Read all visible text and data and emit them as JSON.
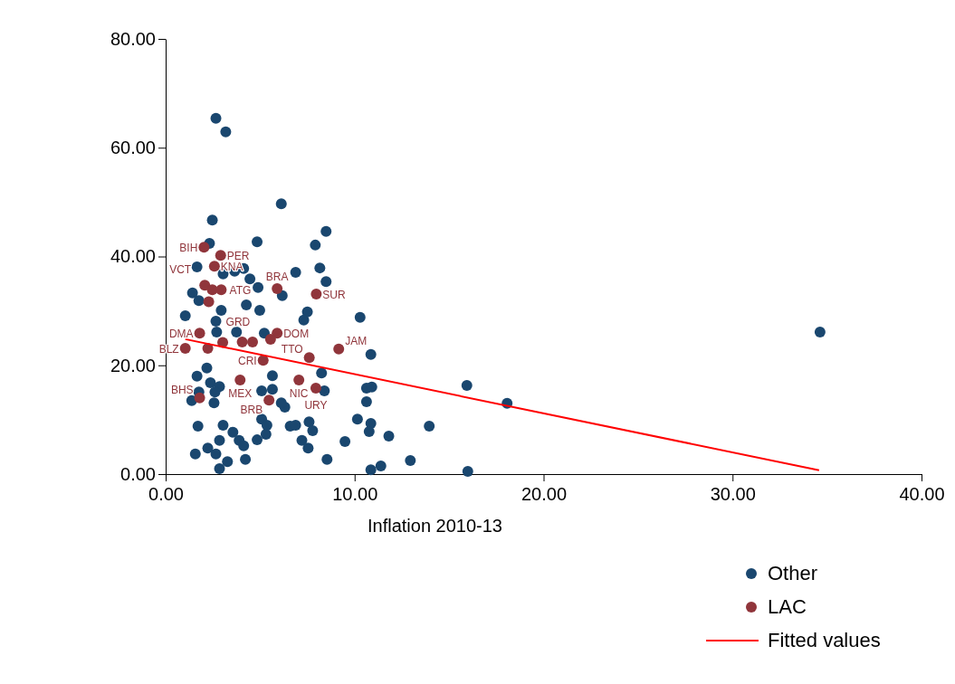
{
  "chart_data": {
    "type": "scatter",
    "xlabel": "Inflation 2010-13",
    "xlim": [
      0,
      40
    ],
    "ylim": [
      0,
      80
    ],
    "xticks": [
      {
        "value": 0,
        "label": "0.00"
      },
      {
        "value": 10,
        "label": "10.00"
      },
      {
        "value": 20,
        "label": "20.00"
      },
      {
        "value": 30,
        "label": "30.00"
      },
      {
        "value": 40,
        "label": "40.00"
      }
    ],
    "yticks": [
      {
        "value": 0,
        "label": "0.00"
      },
      {
        "value": 20,
        "label": "20.00"
      },
      {
        "value": 40,
        "label": "40.00"
      },
      {
        "value": 60,
        "label": "60.00"
      },
      {
        "value": 80,
        "label": "80.00"
      }
    ],
    "grid": false,
    "legend": "bottom right",
    "marker": "circle",
    "series": [
      {
        "name": "Other",
        "color": "#1a476f",
        "x": [
          2.66,
          3.18,
          2.47,
          6.12,
          8.49,
          7.92,
          4.84,
          2.32,
          1.66,
          3.04,
          3.65,
          4.13,
          6.88,
          8.16,
          8.49,
          1.42,
          1.76,
          4.46,
          4.89,
          6.17,
          2.94,
          1.04,
          2.66,
          4.27,
          4.98,
          7.5,
          7.31,
          10.29,
          5.22,
          3.75,
          2.7,
          10.86,
          2.18,
          1.66,
          2.37,
          2.85,
          1.76,
          2.61,
          1.38,
          2.56,
          5.08,
          5.65,
          5.65,
          6.31,
          6.12,
          8.25,
          8.4,
          10.63,
          10.91,
          10.63,
          1.71,
          3.04,
          3.56,
          2.85,
          2.23,
          1.57,
          2.66,
          3.27,
          2.85,
          3.89,
          4.13,
          4.22,
          4.84,
          5.31,
          5.08,
          5.36,
          6.59,
          6.88,
          7.59,
          7.78,
          7.21,
          7.54,
          8.54,
          9.49,
          10.15,
          10.86,
          10.77,
          11.81,
          10.86,
          11.39,
          12.95,
          13.95,
          15.94,
          18.07,
          34.63,
          15.99
        ],
        "values": [
          65.4,
          62.9,
          46.7,
          49.7,
          44.6,
          42.1,
          42.7,
          42.4,
          38.1,
          36.8,
          37.3,
          37.8,
          37.1,
          37.9,
          35.4,
          33.3,
          31.9,
          35.9,
          34.3,
          32.8,
          30.1,
          29.1,
          28.1,
          31.1,
          30.1,
          29.8,
          28.3,
          28.8,
          25.9,
          26.1,
          26.1,
          22.0,
          19.5,
          18.0,
          16.8,
          16.1,
          15.1,
          15.1,
          13.5,
          13.1,
          15.3,
          18.1,
          15.6,
          12.3,
          13.1,
          18.6,
          15.3,
          15.8,
          16.0,
          13.3,
          8.8,
          9.0,
          7.7,
          6.2,
          4.8,
          3.7,
          3.7,
          2.3,
          1.0,
          6.2,
          5.2,
          2.7,
          6.3,
          7.3,
          10.1,
          9.0,
          8.8,
          9.0,
          9.6,
          8.0,
          6.2,
          4.8,
          2.7,
          6.0,
          10.1,
          9.3,
          7.8,
          7.0,
          0.8,
          1.5,
          2.5,
          8.8,
          16.3,
          13.0,
          26.1,
          0.5
        ]
      },
      {
        "name": "LAC",
        "color": "#90353b",
        "x": [
          2.03,
          2.91,
          2.58,
          2.07,
          2.47,
          2.94,
          2.28,
          5.9,
          7.97,
          1.8,
          5.9,
          1.04,
          2.23,
          3.02,
          4.05,
          4.6,
          5.55,
          5.16,
          7.6,
          9.16,
          3.94,
          7.05,
          7.95,
          1.8,
          5.47
        ],
        "values": [
          41.7,
          40.2,
          38.2,
          34.7,
          33.9,
          33.9,
          31.7,
          34.1,
          33.1,
          25.9,
          25.9,
          23.1,
          23.1,
          24.2,
          24.3,
          24.3,
          24.8,
          20.9,
          21.4,
          23.0,
          17.3,
          17.3,
          15.8,
          14.0,
          13.6
        ],
        "value_labels": [
          "BIH",
          "PER",
          "KNA",
          "VCT",
          "ATG",
          null,
          "GRD",
          "BRA",
          "SUR",
          "DMA",
          "DOM",
          "BLZ",
          null,
          null,
          null,
          null,
          null,
          "CRI",
          "TTO",
          "JAM",
          "MEX",
          "NIC",
          "URY",
          "BHS",
          "BRB"
        ]
      },
      {
        "name": "Fitted values",
        "color": "#ff0000",
        "type": "line",
        "marker": "none",
        "x": [
          1.04,
          34.58
        ],
        "values": [
          24.8,
          0.7
        ]
      }
    ]
  }
}
